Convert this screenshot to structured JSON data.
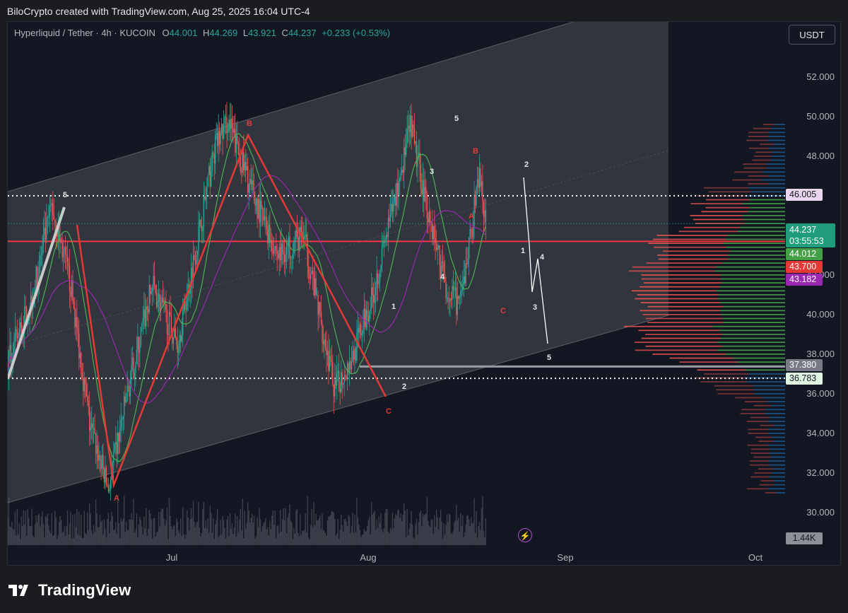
{
  "caption": "BiloCrypto created with TradingView.com, Aug 25, 2025 16:04 UTC-4",
  "symbol": {
    "name": "Hyperliquid / Tether · 4h · KUCOIN",
    "open_label": "O",
    "open": "44.001",
    "high_label": "H",
    "high": "44.269",
    "low_label": "L",
    "low": "43.921",
    "close_label": "C",
    "close": "44.237",
    "change": "+0.233 (+0.53%)"
  },
  "currency": "USDT",
  "price_tags": {
    "resistance": "46.005",
    "current_price": "44.237",
    "countdown": "03:55:53",
    "ma_green": "44.012",
    "horizontal_red": "43.700",
    "ma_purple": "43.182",
    "grey_line": "37.380",
    "support": "36.783",
    "volume": "1.44K"
  },
  "brand": "TradingView",
  "lightning_icon": "⚡",
  "colors": {
    "up": "#26a69a",
    "down": "#ef5350",
    "ma_green": "#4caf50",
    "ma_purple": "#9c27b0",
    "wave_red": "#e53935",
    "channel": "#ffffff"
  },
  "chart_data": {
    "type": "candlestick",
    "x_ticks": [
      "Jul",
      "Aug",
      "Sep",
      "Oct"
    ],
    "y_ticks": [
      "30.000",
      "32.000",
      "34.000",
      "36.000",
      "38.000",
      "40.000",
      "42.000",
      "44.000",
      "46.000",
      "48.000",
      "50.000",
      "52.000"
    ],
    "ylim": [
      29.2,
      54.8
    ],
    "price_path_approx": [
      [
        "Jun 10",
        37.5
      ],
      [
        "Jun 14",
        41.0
      ],
      [
        "Jun 17",
        45.5
      ],
      [
        "Jun 20",
        41.5
      ],
      [
        "Jun 23",
        34.5
      ],
      [
        "Jun 26",
        31.2
      ],
      [
        "Jun 29",
        36.0
      ],
      [
        "Jul 3",
        41.5
      ],
      [
        "Jul 7",
        38.5
      ],
      [
        "Jul 10",
        43.5
      ],
      [
        "Jul 13",
        48.5
      ],
      [
        "Jul 15",
        49.8
      ],
      [
        "Jul 19",
        46.0
      ],
      [
        "Jul 23",
        43.0
      ],
      [
        "Jul 27",
        44.0
      ],
      [
        "Aug 1",
        36.2
      ],
      [
        "Aug 4",
        38.0
      ],
      [
        "Aug 7",
        41.0
      ],
      [
        "Aug 10",
        45.0
      ],
      [
        "Aug 13",
        49.5
      ],
      [
        "Aug 16",
        45.0
      ],
      [
        "Aug 19",
        41.0
      ],
      [
        "Aug 21",
        40.5
      ],
      [
        "Aug 24",
        47.2
      ],
      [
        "Aug 25",
        44.237
      ]
    ],
    "horizontal_levels": {
      "resistance_dotted": 46.005,
      "support_dotted": 36.783,
      "red_line": 43.7,
      "grey_segment": 37.38
    },
    "wave_labels_red": [
      "A",
      "B",
      "C",
      "A",
      "B",
      "C"
    ],
    "wave_labels_white": [
      "5",
      "5",
      "3",
      "1",
      "2",
      "3",
      "4",
      "2",
      "1",
      "4",
      "3",
      "5"
    ],
    "projection": "white zigzag forecast ending near 38.5 labeled 1-5",
    "volume_profile": "visible range profile on right, red/green/teal bars",
    "grid": false,
    "legend": "top-left"
  }
}
